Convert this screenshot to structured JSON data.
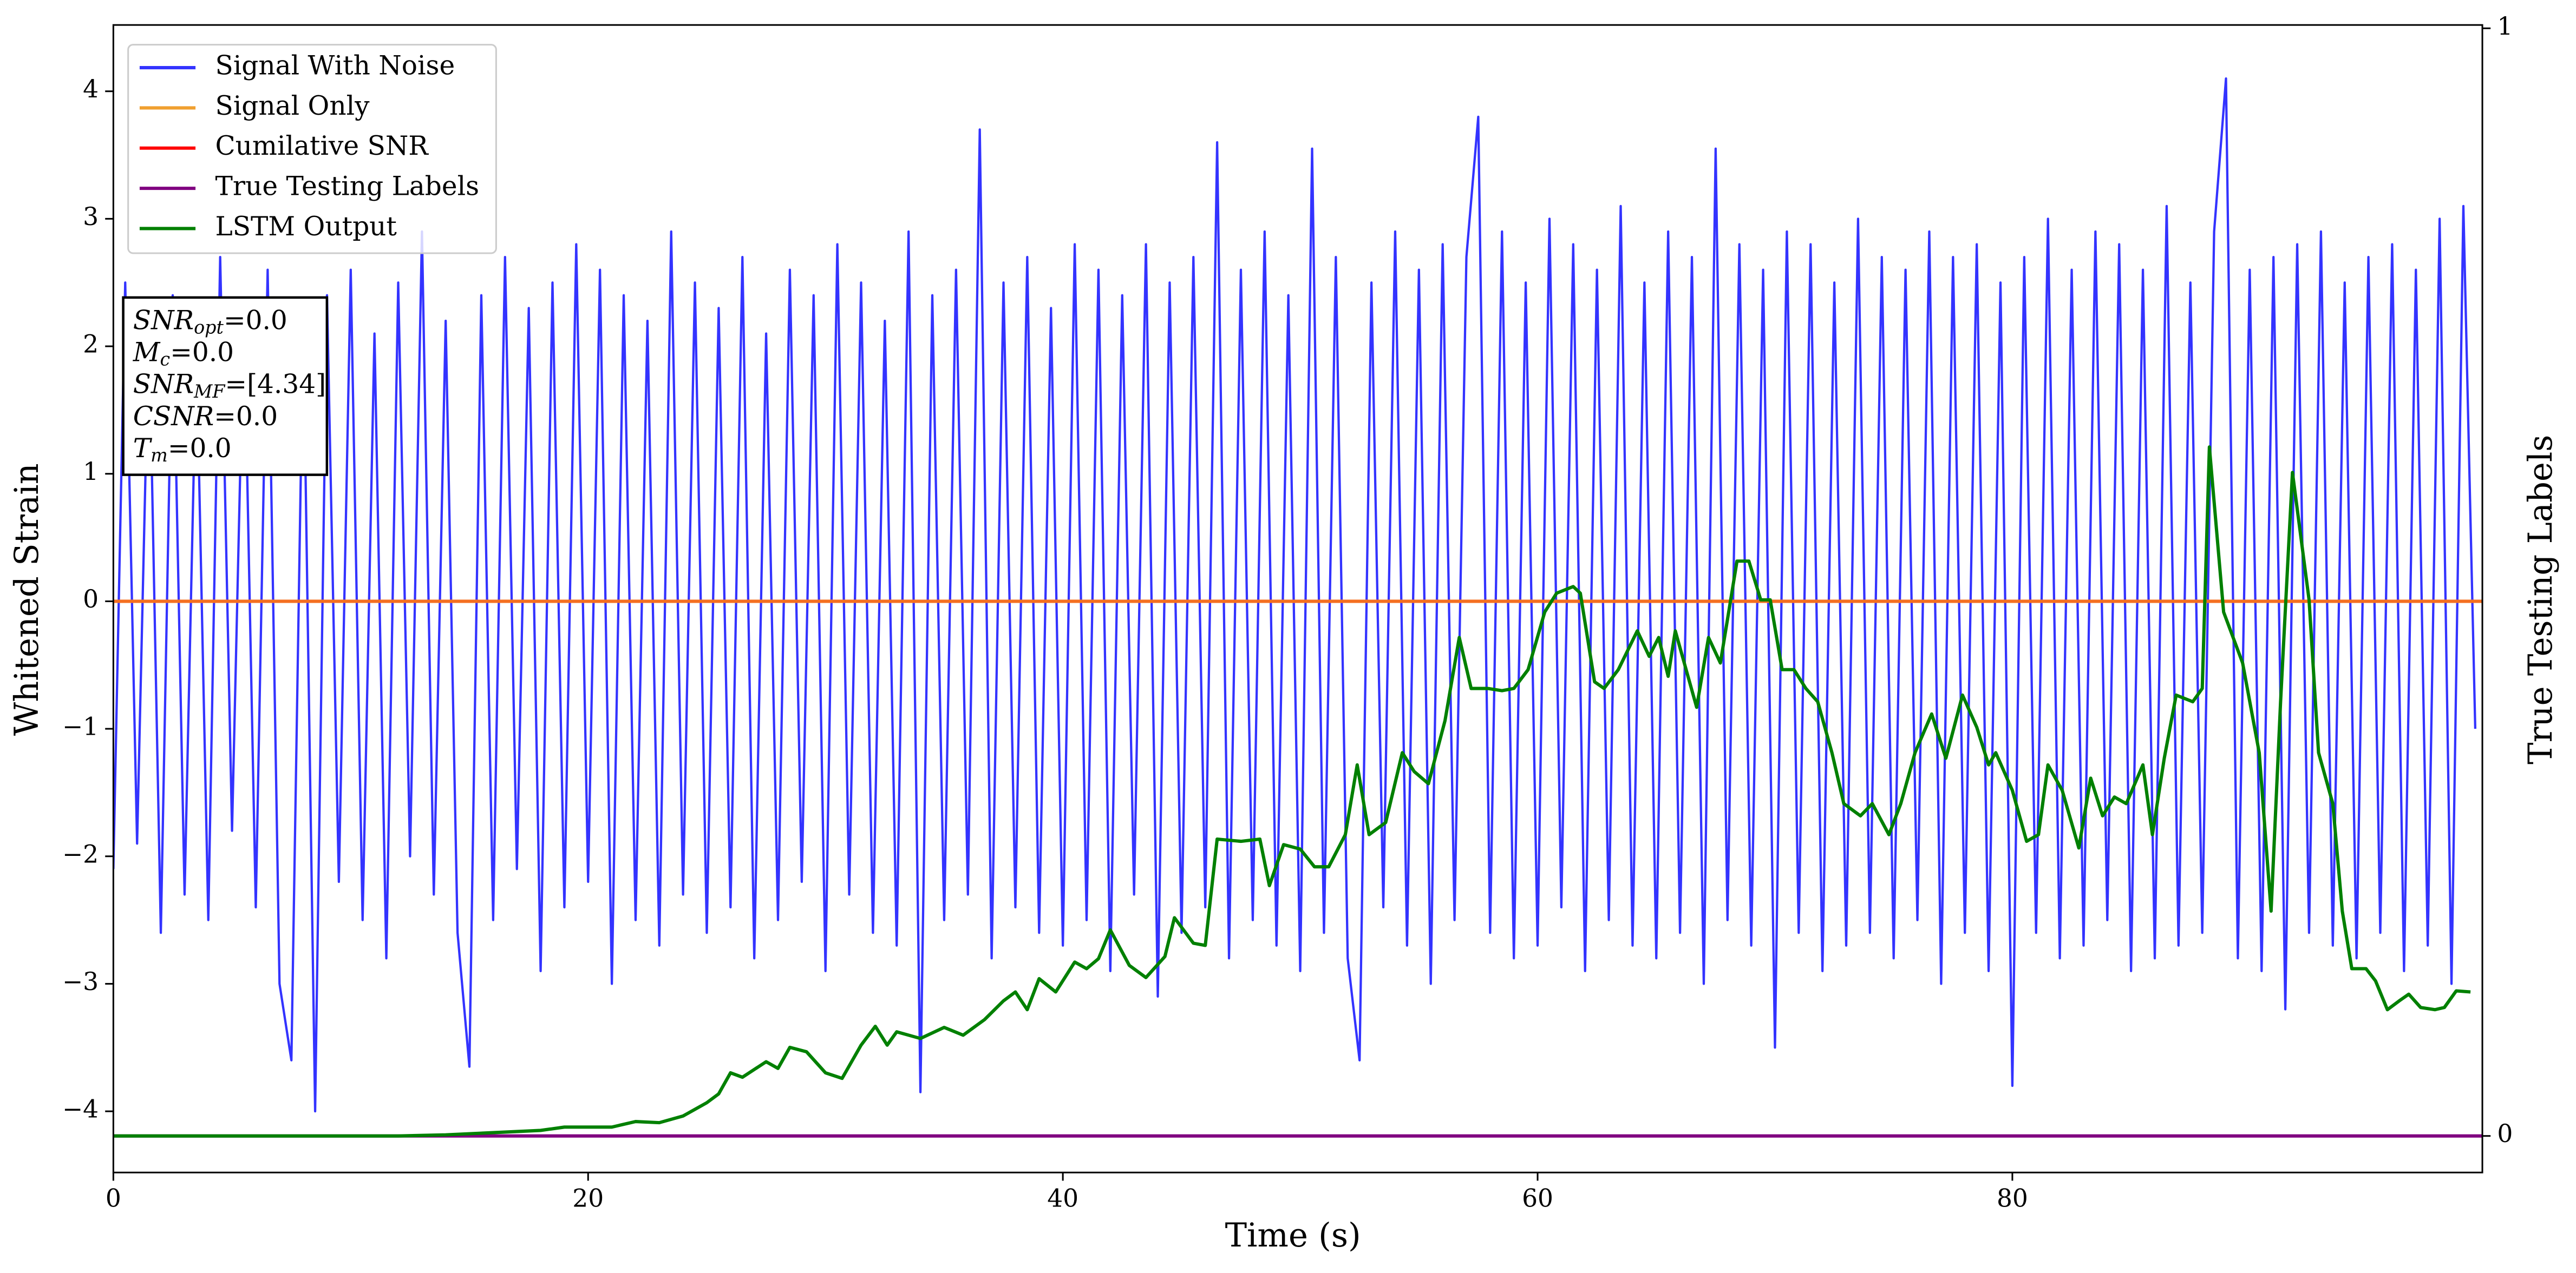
{
  "chart_data": {
    "type": "line",
    "xlabel": "Time (s)",
    "ylabel": "Whitened Strain",
    "y2label": "True Testing Labels",
    "xlim": [
      0,
      99.8
    ],
    "xticks": [
      0,
      20,
      40,
      60,
      80
    ],
    "ylim": [
      -4.48,
      4.52
    ],
    "yticks": [
      -4,
      -3,
      -2,
      -1,
      0,
      1,
      2,
      3,
      4
    ],
    "y2lim": [
      -0.033,
      1.003
    ],
    "y2ticks": [
      0,
      1
    ],
    "legend": "upper left",
    "x": [
      0,
      0.5,
      1,
      1.5,
      2,
      2.5,
      3,
      3.5,
      4,
      4.5,
      5,
      5.5,
      6,
      6.5,
      7,
      7.5,
      8,
      8.5,
      9,
      9.5,
      10,
      10.5,
      11,
      11.5,
      12,
      12.5,
      13,
      13.5,
      14,
      14.5,
      15,
      15.5,
      16,
      16.5,
      17,
      17.5,
      18,
      18.5,
      19,
      19.5,
      20,
      20.5,
      21,
      21.5,
      22,
      22.5,
      23,
      23.5,
      24,
      24.5,
      25,
      25.5,
      26,
      26.5,
      27,
      27.5,
      28,
      28.5,
      29,
      29.5,
      30,
      30.5,
      31,
      31.5,
      32,
      32.5,
      33,
      33.5,
      34,
      34.5,
      35,
      35.5,
      36,
      36.5,
      37,
      37.5,
      38,
      38.5,
      39,
      39.5,
      40,
      40.5,
      41,
      41.5,
      42,
      42.5,
      43,
      43.5,
      44,
      44.5,
      45,
      45.5,
      46,
      46.5,
      47,
      47.5,
      48,
      48.5,
      49,
      49.5,
      50,
      50.5,
      51,
      51.5,
      52,
      52.5,
      53,
      53.5,
      54,
      54.5,
      55,
      55.5,
      56,
      56.5,
      57,
      57.5,
      58,
      58.5,
      59,
      59.5,
      60,
      60.5,
      61,
      61.5,
      62,
      62.5,
      63,
      63.5,
      64,
      64.5,
      65,
      65.5,
      66,
      66.5,
      67,
      67.5,
      68,
      68.5,
      69,
      69.5,
      70,
      70.5,
      71,
      71.5,
      72,
      72.5,
      73,
      73.5,
      74,
      74.5,
      75,
      75.5,
      76,
      76.5,
      77,
      77.5,
      78,
      78.5,
      79,
      79.5,
      80,
      80.5,
      81,
      81.5,
      82,
      82.5,
      83,
      83.5,
      84,
      84.5,
      85,
      85.5,
      86,
      86.5,
      87,
      87.5,
      88,
      88.5,
      89,
      89.5,
      90,
      90.5,
      91,
      91.5,
      92,
      92.5,
      93,
      93.5,
      94,
      94.5,
      95,
      95.5,
      96,
      96.5,
      97,
      97.5,
      98,
      98.5,
      99,
      99.5
    ],
    "series": [
      {
        "name": "Signal With Noise",
        "color": "#3333ff",
        "values": [
          -2.1,
          2.5,
          -1.9,
          2.2,
          -2.6,
          2.4,
          -2.3,
          2.0,
          -2.5,
          2.7,
          -1.8,
          2.3,
          -2.4,
          2.6,
          -3.0,
          -3.6,
          2.2,
          -4.0,
          2.4,
          -2.2,
          2.6,
          -2.5,
          2.1,
          -2.8,
          2.5,
          -2.0,
          2.9,
          -2.3,
          2.2,
          -2.6,
          -3.65,
          2.4,
          -2.5,
          2.7,
          -2.1,
          2.3,
          -2.9,
          2.5,
          -2.4,
          2.8,
          -2.2,
          2.6,
          -3.0,
          2.4,
          -2.5,
          2.2,
          -2.7,
          2.9,
          -2.3,
          2.5,
          -2.6,
          2.3,
          -2.4,
          2.7,
          -2.8,
          2.1,
          -2.5,
          2.6,
          -2.2,
          2.4,
          -2.9,
          2.8,
          -2.3,
          2.5,
          -2.6,
          2.2,
          -2.7,
          2.9,
          -3.85,
          2.4,
          -2.5,
          2.6,
          -2.3,
          3.7,
          -2.8,
          2.5,
          -2.4,
          2.7,
          -2.6,
          2.3,
          -2.7,
          2.8,
          -2.5,
          2.6,
          -2.9,
          2.4,
          -2.3,
          2.8,
          -3.1,
          2.5,
          -2.6,
          2.7,
          -2.4,
          3.6,
          -2.8,
          2.6,
          -2.5,
          2.9,
          -2.7,
          2.4,
          -2.9,
          3.55,
          -2.6,
          2.7,
          -2.8,
          -3.6,
          2.5,
          -2.4,
          2.9,
          -2.7,
          2.6,
          -3.0,
          2.8,
          -2.5,
          2.7,
          3.8,
          -2.6,
          2.9,
          -2.8,
          2.5,
          -2.7,
          3.0,
          -2.4,
          2.8,
          -2.9,
          2.6,
          -2.5,
          3.1,
          -2.7,
          2.5,
          -2.8,
          2.9,
          -2.6,
          2.7,
          -3.0,
          3.55,
          -2.5,
          2.8,
          -2.7,
          2.6,
          -3.5,
          2.9,
          -2.6,
          2.8,
          -2.9,
          2.5,
          -2.7,
          3.0,
          -2.6,
          2.7,
          -2.8,
          2.6,
          -2.5,
          2.9,
          -3.0,
          2.7,
          -2.6,
          2.8,
          -2.9,
          2.5,
          -3.8,
          2.7,
          -2.6,
          3.0,
          -2.8,
          2.6,
          -2.7,
          2.9,
          -2.5,
          2.8,
          -2.9,
          2.6,
          -2.8,
          3.1,
          -2.7,
          2.5,
          -2.6,
          2.9,
          4.1,
          -2.8,
          2.6,
          -2.9,
          2.7,
          -3.2,
          2.8,
          -2.6,
          2.9,
          -2.7,
          2.5,
          -2.8,
          2.7,
          -2.6,
          2.8,
          -2.9,
          2.6,
          -2.7,
          3.0,
          -3.0,
          3.1,
          -1.0
        ]
      },
      {
        "name": "Signal Only",
        "color": "#f0a030",
        "x": [
          0,
          99.8
        ],
        "values": [
          0,
          0
        ]
      },
      {
        "name": "Cumilative SNR",
        "color": "red",
        "alpha": 0.3,
        "x": [
          0,
          99.8
        ],
        "values": [
          0,
          0
        ]
      },
      {
        "name": "True Testing Labels",
        "color": "purple",
        "axis": "y2",
        "x": [
          0,
          99.8
        ],
        "values": [
          0,
          0
        ]
      },
      {
        "name": "LSTM Output",
        "color": "green",
        "axis": "y2",
        "x": [
          0,
          12,
          14,
          16,
          18,
          19,
          21,
          22,
          23,
          24,
          25,
          25.5,
          26,
          26.5,
          27.5,
          28,
          28.5,
          29.2,
          30,
          30.7,
          31.5,
          32.1,
          32.6,
          33,
          34,
          35,
          35.8,
          36.7,
          37.5,
          38,
          38.5,
          39,
          39.7,
          40.5,
          41,
          41.5,
          42,
          42.8,
          43.5,
          44.3,
          44.7,
          45.5,
          46,
          46.5,
          47.5,
          48.3,
          48.7,
          49.3,
          50,
          50.6,
          51.2,
          51.9,
          52.4,
          52.9,
          53.6,
          54.3,
          54.8,
          55.4,
          56.1,
          56.7,
          57.2,
          57.9,
          58.5,
          59,
          59.6,
          60.3,
          60.8,
          61.5,
          61.8,
          62.4,
          62.8,
          63.4,
          64.2,
          64.7,
          65.1,
          65.5,
          65.8,
          66.7,
          67.2,
          67.7,
          68.4,
          68.9,
          69.4,
          69.8,
          70.3,
          70.8,
          71.3,
          71.8,
          72.4,
          72.9,
          73.6,
          74.1,
          74.8,
          75.3,
          75.9,
          76.6,
          77.2,
          77.9,
          78.5,
          79,
          79.3,
          80,
          80.6,
          81.1,
          81.5,
          82.1,
          82.8,
          83.3,
          83.8,
          84.3,
          84.8,
          85.5,
          85.9,
          86.4,
          86.9,
          87.6,
          88,
          88.3,
          88.9,
          89.7,
          90.4,
          90.9,
          91.3,
          91.8,
          92.5,
          92.9,
          93.5,
          93.9,
          94.3,
          94.9,
          95.3,
          95.8,
          96.3,
          96.7,
          97.2,
          97.8,
          98.2,
          98.7,
          99.3
        ],
        "values": [
          0,
          0,
          0.001,
          0.003,
          0.005,
          0.008,
          0.008,
          0.013,
          0.012,
          0.018,
          0.03,
          0.038,
          0.057,
          0.053,
          0.067,
          0.061,
          0.08,
          0.076,
          0.057,
          0.052,
          0.082,
          0.099,
          0.082,
          0.094,
          0.088,
          0.098,
          0.091,
          0.105,
          0.122,
          0.13,
          0.114,
          0.142,
          0.13,
          0.157,
          0.151,
          0.16,
          0.186,
          0.154,
          0.143,
          0.162,
          0.197,
          0.174,
          0.172,
          0.268,
          0.266,
          0.268,
          0.226,
          0.263,
          0.259,
          0.243,
          0.243,
          0.272,
          0.335,
          0.272,
          0.283,
          0.346,
          0.329,
          0.318,
          0.375,
          0.45,
          0.404,
          0.404,
          0.402,
          0.404,
          0.421,
          0.473,
          0.49,
          0.496,
          0.49,
          0.41,
          0.404,
          0.421,
          0.456,
          0.433,
          0.45,
          0.415,
          0.456,
          0.387,
          0.45,
          0.427,
          0.519,
          0.519,
          0.484,
          0.484,
          0.421,
          0.421,
          0.404,
          0.392,
          0.346,
          0.3,
          0.289,
          0.3,
          0.272,
          0.3,
          0.346,
          0.381,
          0.341,
          0.398,
          0.369,
          0.335,
          0.346,
          0.312,
          0.266,
          0.272,
          0.335,
          0.312,
          0.26,
          0.323,
          0.289,
          0.306,
          0.3,
          0.335,
          0.272,
          0.341,
          0.398,
          0.392,
          0.404,
          0.622,
          0.473,
          0.427,
          0.346,
          0.203,
          0.392,
          0.599,
          0.484,
          0.346,
          0.3,
          0.203,
          0.151,
          0.151,
          0.14,
          0.114,
          0.122,
          0.128,
          0.116,
          0.114,
          0.116,
          0.131,
          0.13
        ]
      }
    ],
    "info_box": [
      {
        "base": "SNR",
        "sub": "opt",
        "text": "=0.0"
      },
      {
        "base": "M",
        "sub": "c",
        "text": "=0.0"
      },
      {
        "base": "SNR",
        "sub": "MF",
        "text": "=[4.34]"
      },
      {
        "base": "CSNR",
        "text": "=0.0"
      },
      {
        "base": "T",
        "sub": "m",
        "text": "=0.0"
      }
    ]
  }
}
